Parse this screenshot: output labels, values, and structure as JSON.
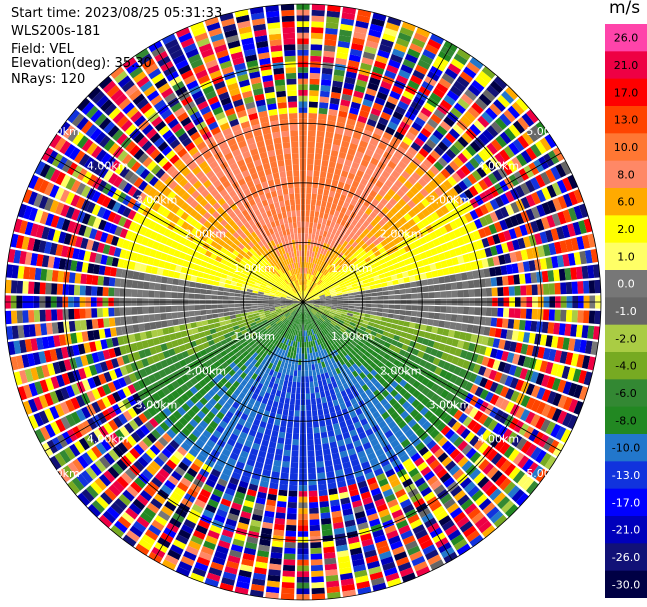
{
  "header": {
    "start_time": "Start time: 2023/08/25 05:31:33",
    "instrument": "WLS200s-181",
    "field": "Field: VEL",
    "elevation": "Elevation(deg): 35.30",
    "nrays": "NRays: 120"
  },
  "chart_data": {
    "type": "heatmap",
    "projection": "polar-ppi",
    "field": "VEL",
    "units": "m/s",
    "n_rays": 120,
    "elevation_deg": 35.3,
    "max_range_km": 5.0,
    "range_rings_km": [
      1,
      2,
      3,
      4,
      5
    ],
    "ring_labels": [
      "1.00km",
      "2.00km",
      "3.00km",
      "4.00km",
      "5.00km"
    ],
    "spokes_deg": [
      0,
      30,
      60,
      90,
      120,
      150,
      180,
      210,
      240,
      270,
      300,
      330
    ],
    "valid_range_km": 3.2,
    "pattern": "positive velocities (red/orange/yellow) to the north, negative (green/blue) to the south, near-zero (grey) along east-west axis; noisy random values beyond ~3 km",
    "colorbar": {
      "unit": "m/s",
      "ticks": [
        "26.0",
        "21.0",
        "17.0",
        "13.0",
        "10.0",
        "8.0",
        "6.0",
        "2.0",
        "1.0",
        "0.0",
        "-1.0",
        "-2.0",
        "-4.0",
        "-6.0",
        "-8.0",
        "-10.0",
        "-13.0",
        "-17.0",
        "-21.0",
        "-26.0",
        "-30.0"
      ],
      "colors": [
        "#ff44aa",
        "#ee0044",
        "#ff0000",
        "#ff4400",
        "#ff7733",
        "#ff8866",
        "#ffaa00",
        "#ffff00",
        "#ffff66",
        "#777777",
        "#666666",
        "#aacc44",
        "#77aa22",
        "#338833",
        "#228822",
        "#2277cc",
        "#1133dd",
        "#0000ff",
        "#0000bb",
        "#111177",
        "#000044"
      ]
    }
  }
}
